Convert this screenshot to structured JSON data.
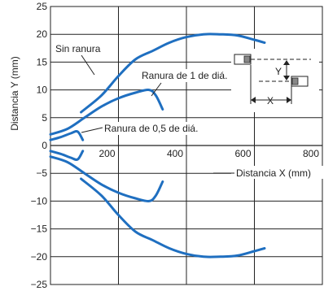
{
  "chart_data": {
    "type": "line",
    "xlabel": "Distancia X (mm)",
    "ylabel": "Distancia Y (mm)",
    "xlim": [
      0,
      800
    ],
    "ylim": [
      -25,
      25
    ],
    "xticks": [
      200,
      400,
      600,
      800
    ],
    "yticks": [
      25,
      20,
      15,
      10,
      5,
      0,
      -5,
      -10,
      -15,
      -20,
      -25
    ],
    "grid": true,
    "series": [
      {
        "name": "Sin ranura",
        "color": "#1f6fc0",
        "upper": [
          [
            90,
            6
          ],
          [
            150,
            9
          ],
          [
            200,
            12.5
          ],
          [
            250,
            15.5
          ],
          [
            300,
            17
          ],
          [
            350,
            18.5
          ],
          [
            400,
            19.5
          ],
          [
            450,
            20
          ],
          [
            500,
            20
          ],
          [
            550,
            19.8
          ],
          [
            600,
            19
          ],
          [
            630,
            18.5
          ]
        ],
        "lower": [
          [
            90,
            -6
          ],
          [
            150,
            -9
          ],
          [
            200,
            -12.5
          ],
          [
            250,
            -15.5
          ],
          [
            300,
            -17
          ],
          [
            350,
            -18.5
          ],
          [
            400,
            -19.5
          ],
          [
            450,
            -20
          ],
          [
            500,
            -20
          ],
          [
            550,
            -19.8
          ],
          [
            600,
            -19
          ],
          [
            630,
            -18.5
          ]
        ]
      },
      {
        "name": "Ranura de 1 de diá.",
        "color": "#1f6fc0",
        "upper": [
          [
            0,
            2
          ],
          [
            50,
            3
          ],
          [
            100,
            5
          ],
          [
            150,
            7
          ],
          [
            200,
            8.5
          ],
          [
            250,
            9.5
          ],
          [
            290,
            10
          ],
          [
            310,
            9
          ],
          [
            330,
            6.5
          ]
        ],
        "lower": [
          [
            0,
            -2
          ],
          [
            50,
            -3
          ],
          [
            100,
            -5
          ],
          [
            150,
            -7
          ],
          [
            200,
            -8.5
          ],
          [
            250,
            -9.5
          ],
          [
            290,
            -10
          ],
          [
            310,
            -9
          ],
          [
            330,
            -6.5
          ]
        ]
      },
      {
        "name": "Ranura de 0,5 de diá.",
        "color": "#1f6fc0",
        "upper": [
          [
            0,
            1
          ],
          [
            30,
            1.5
          ],
          [
            60,
            2.2
          ],
          [
            80,
            2.5
          ],
          [
            95,
            1
          ]
        ],
        "lower": [
          [
            0,
            -1
          ],
          [
            30,
            -1.5
          ],
          [
            60,
            -2.2
          ],
          [
            80,
            -2.5
          ],
          [
            95,
            -1
          ]
        ]
      }
    ],
    "annotations": [
      {
        "text": "Sin ranura"
      },
      {
        "text": "Ranura de 1 de diá."
      },
      {
        "text": "Ranura de 0,5 de diá."
      }
    ],
    "inset_labels": {
      "y": "Y",
      "x": "X"
    }
  }
}
